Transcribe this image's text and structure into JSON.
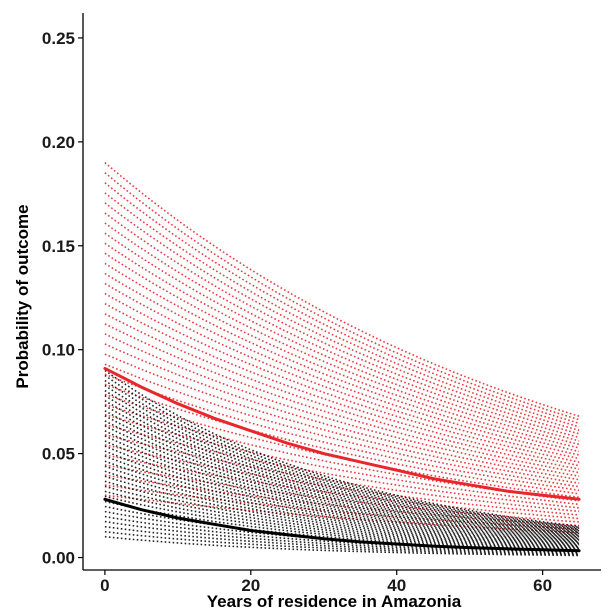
{
  "chart_data": {
    "type": "line",
    "title": "",
    "xlabel": "Years of residence in Amazonia",
    "ylabel": "Probability of outcome",
    "xlim": [
      -3,
      68
    ],
    "ylim": [
      -0.006,
      0.262
    ],
    "x_ticks": [
      0,
      20,
      40,
      60
    ],
    "y_ticks": [
      0.0,
      0.05,
      0.1,
      0.15,
      0.2,
      0.25
    ],
    "x_tick_labels": [
      "0",
      "20",
      "40",
      "60"
    ],
    "y_tick_labels": [
      "0.00",
      "0.05",
      "0.10",
      "0.15",
      "0.20",
      "0.25"
    ],
    "grid": false,
    "legend": false,
    "x": [
      0,
      5,
      10,
      15,
      20,
      25,
      30,
      35,
      40,
      45,
      50,
      55,
      60,
      65
    ],
    "series": [
      {
        "color": "#e8262b",
        "style": "solid",
        "values": [
          0.091,
          0.082,
          0.074,
          0.067,
          0.061,
          0.055,
          0.05,
          0.046,
          0.042,
          0.038,
          0.035,
          0.032,
          0.03,
          0.028
        ]
      },
      {
        "color": "#000000",
        "style": "solid",
        "values": [
          0.028,
          0.023,
          0.019,
          0.016,
          0.013,
          0.011,
          0.009,
          0.0075,
          0.0065,
          0.0055,
          0.0048,
          0.0042,
          0.0037,
          0.0033
        ]
      }
    ],
    "uncertainty_bands": [
      {
        "color": "#e8262b",
        "style": "dotted",
        "x_range": [
          0,
          65
        ],
        "y_upper_start": 0.19,
        "y_upper_end": 0.068,
        "y_lower_start": 0.03,
        "y_lower_end": 0.012
      },
      {
        "color": "#000000",
        "style": "dotted",
        "x_range": [
          0,
          65
        ],
        "y_upper_start": 0.09,
        "y_upper_end": 0.015,
        "y_lower_start": 0.01,
        "y_lower_end": 0.001
      }
    ]
  }
}
